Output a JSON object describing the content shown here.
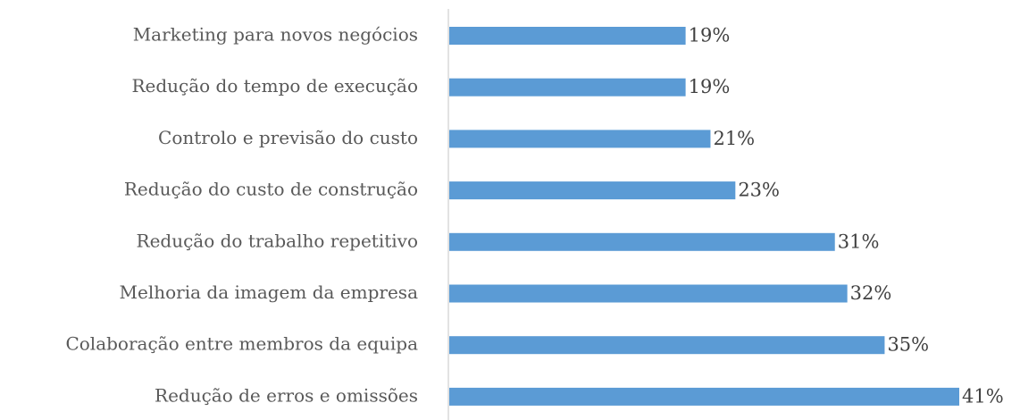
{
  "chart_data": {
    "type": "barh",
    "categories": [
      "Marketing para novos negócios",
      "Redução do tempo de execução",
      "Controlo e previsão do custo",
      "Redução do custo de construção",
      "Redução do trabalho repetitivo",
      "Melhoria da imagem da empresa",
      "Colaboração entre membros da equipa",
      "Redução de erros e omissões"
    ],
    "values": [
      19,
      19,
      21,
      23,
      31,
      32,
      35,
      41
    ],
    "value_labels": [
      "19%",
      "19%",
      "21%",
      "23%",
      "31%",
      "32%",
      "35%",
      "41%"
    ],
    "color": "#5b9bd5"
  }
}
